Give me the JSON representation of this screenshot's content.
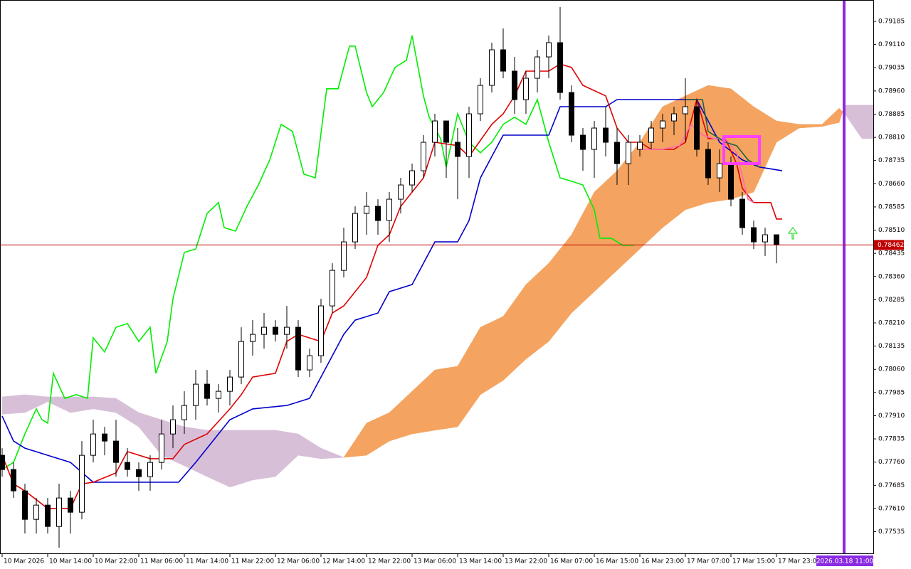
{
  "chart_data": {
    "type": "candlestick",
    "xlim": [
      -0.375,
      153
    ],
    "ylim": [
      0.77465,
      0.79254
    ],
    "xticks": [
      {
        "value": 0,
        "label": "10 Mar 2026"
      },
      {
        "value": 8,
        "label": "10 Mar 14:00"
      },
      {
        "value": 16,
        "label": "10 Mar 22:00"
      },
      {
        "value": 24,
        "label": "11 Mar 06:00"
      },
      {
        "value": 32,
        "label": "11 Mar 14:00"
      },
      {
        "value": 40,
        "label": "11 Mar 22:00"
      },
      {
        "value": 48,
        "label": "12 Mar 06:00"
      },
      {
        "value": 56,
        "label": "12 Mar 14:00"
      },
      {
        "value": 64,
        "label": "12 Mar 22:00"
      },
      {
        "value": 72,
        "label": "13 Mar 06:00"
      },
      {
        "value": 80,
        "label": "13 Mar 14:00"
      },
      {
        "value": 88,
        "label": "13 Mar 22:00"
      },
      {
        "value": 96,
        "label": "16 Mar 07:00"
      },
      {
        "value": 104,
        "label": "16 Mar 15:00"
      },
      {
        "value": 112,
        "label": "16 Mar 23:00"
      },
      {
        "value": 120,
        "label": "17 Mar 07:00"
      },
      {
        "value": 128,
        "label": "17 Mar 15:00"
      },
      {
        "value": 136,
        "label": "17 Mar 23:00"
      }
    ],
    "yticks": [
      0.79185,
      {
        "value": 0.7911,
        "label": "0.79110"
      },
      0.79035,
      {
        "value": 0.7896,
        "label": "0.78960"
      },
      0.78885,
      {
        "value": 0.7881,
        "label": "0.78810"
      },
      0.78735,
      {
        "value": 0.7866,
        "label": "0.78660"
      },
      0.78585,
      {
        "value": 0.7851,
        "label": "0.78510"
      },
      0.78435,
      {
        "value": 0.7836,
        "label": "0.78360"
      },
      0.78285,
      {
        "value": 0.7821,
        "label": "0.78210"
      },
      0.78135,
      {
        "value": 0.7806,
        "label": "0.78060"
      },
      0.77985,
      {
        "value": 0.7791,
        "label": "0.77910"
      },
      0.77835,
      {
        "value": 0.7776,
        "label": "0.77760"
      },
      0.77685,
      {
        "value": 0.7761,
        "label": "0.77610"
      },
      0.77535
    ],
    "bull_color": "#ffffff",
    "bear_color": "#000000",
    "x": [
      0,
      2,
      4,
      6,
      8,
      10,
      12,
      14,
      16,
      18,
      20,
      22,
      24,
      26,
      28,
      30,
      32,
      34,
      36,
      38,
      40,
      42,
      44,
      46,
      48,
      50,
      52,
      54,
      56,
      58,
      60,
      62,
      64,
      66,
      68,
      70,
      72,
      74,
      76,
      78,
      80,
      82,
      84,
      86,
      88,
      90,
      92,
      94,
      96,
      98,
      100,
      102,
      104,
      106,
      108,
      110,
      112,
      114,
      116,
      118,
      120,
      122,
      124,
      126,
      128,
      130,
      132,
      134,
      136
    ],
    "open": [
      0.77782,
      0.77736,
      0.77667,
      0.77575,
      0.77621,
      0.77552,
      0.77644,
      0.77598,
      0.77782,
      0.77851,
      0.77828,
      0.77759,
      0.77736,
      0.77713,
      0.77759,
      0.77851,
      0.77897,
      0.77943,
      0.78012,
      0.77966,
      0.77989,
      0.78035,
      0.7815,
      0.78173,
      0.78196,
      0.78173,
      0.78196,
      0.78058,
      0.78104,
      0.78265,
      0.7838,
      0.78472,
      0.78564,
      0.78587,
      0.78541,
      0.7861,
      0.78656,
      0.78702,
      0.78794,
      0.78863,
      0.78794,
      0.78748,
      0.78886,
      0.78978,
      0.79093,
      0.79024,
      0.78932,
      0.79001,
      0.7907,
      0.79116,
      0.78955,
      0.78817,
      0.78771,
      0.7884,
      0.78794,
      0.78725,
      0.78771,
      0.78794,
      0.7884,
      0.78863,
      0.78886,
      0.78909,
      0.78771,
      0.78679,
      0.78725,
      0.7861,
      0.78518,
      0.78472,
      0.78495
    ],
    "high": [
      0.77805,
      0.77759,
      0.7769,
      0.77644,
      0.77644,
      0.7769,
      0.77667,
      0.77828,
      0.77897,
      0.77874,
      0.77897,
      0.77805,
      0.77759,
      0.77782,
      0.77897,
      0.77943,
      0.77989,
      0.78058,
      0.78058,
      0.78012,
      0.78058,
      0.78196,
      0.78219,
      0.78242,
      0.78219,
      0.78265,
      0.78219,
      0.78127,
      0.78288,
      0.78403,
      0.78518,
      0.78587,
      0.78633,
      0.7861,
      0.78633,
      0.78679,
      0.78725,
      0.78817,
      0.78886,
      0.78863,
      0.7884,
      0.78909,
      0.79001,
      0.79116,
      0.79162,
      0.7907,
      0.79024,
      0.79093,
      0.79139,
      0.79231,
      0.78978,
      0.7884,
      0.78863,
      0.78909,
      0.7884,
      0.78817,
      0.78817,
      0.78863,
      0.78886,
      0.78909,
      0.79001,
      0.78932,
      0.78794,
      0.78771,
      0.78748,
      0.78633,
      0.78541,
      0.78518,
      0.78495
    ],
    "low": [
      0.77713,
      0.77644,
      0.77529,
      0.77529,
      0.77529,
      0.77483,
      0.77529,
      0.77575,
      0.77759,
      0.77782,
      0.77713,
      0.77713,
      0.77667,
      0.77667,
      0.77736,
      0.77805,
      0.77851,
      0.77897,
      0.77943,
      0.7792,
      0.77943,
      0.78012,
      0.78104,
      0.78127,
      0.7815,
      0.78127,
      0.78035,
      0.78035,
      0.78081,
      0.78242,
      0.78357,
      0.78449,
      0.78495,
      0.78495,
      0.78472,
      0.78564,
      0.78633,
      0.78679,
      0.78748,
      0.78679,
      0.7861,
      0.78679,
      0.78863,
      0.78955,
      0.79001,
      0.78886,
      0.78886,
      0.78955,
      0.79001,
      0.78932,
      0.78794,
      0.78702,
      0.78679,
      0.78748,
      0.78656,
      0.78656,
      0.78748,
      0.78771,
      0.78794,
      0.78817,
      0.78794,
      0.78748,
      0.78656,
      0.78633,
      0.78587,
      0.78495,
      0.78449,
      0.78426,
      0.78403
    ],
    "close": [
      0.77736,
      0.77667,
      0.77575,
      0.77621,
      0.77552,
      0.77644,
      0.77598,
      0.77782,
      0.77851,
      0.77828,
      0.77759,
      0.77736,
      0.77713,
      0.77759,
      0.77851,
      0.77897,
      0.77943,
      0.78012,
      0.77966,
      0.77989,
      0.78035,
      0.7815,
      0.78173,
      0.78196,
      0.78173,
      0.78196,
      0.78058,
      0.78104,
      0.78265,
      0.7838,
      0.78472,
      0.78564,
      0.78587,
      0.78541,
      0.7861,
      0.78656,
      0.78702,
      0.78794,
      0.78863,
      0.78794,
      0.78748,
      0.78886,
      0.78978,
      0.79093,
      0.79024,
      0.78932,
      0.79001,
      0.7907,
      0.79116,
      0.78955,
      0.78817,
      0.78771,
      0.7884,
      0.78794,
      0.78725,
      0.78794,
      0.78794,
      0.7884,
      0.78863,
      0.78886,
      0.78909,
      0.78771,
      0.78679,
      0.78725,
      0.7861,
      0.78518,
      0.78472,
      0.78495,
      0.78462
    ],
    "cloud": {
      "up_color": "#f4a460",
      "down_color": "#d8bfd8",
      "x": [
        0,
        4,
        8,
        12,
        16,
        20,
        24,
        28,
        32,
        36,
        40,
        44,
        48,
        52,
        56,
        60,
        64,
        68,
        72,
        76,
        80,
        84,
        88,
        92,
        96,
        100,
        104,
        108,
        112,
        116,
        120,
        124,
        128,
        132,
        136,
        140,
        144,
        147,
        148,
        151,
        153
      ],
      "span_a": [
        0.77915,
        0.7792,
        0.77955,
        0.7792,
        0.77932,
        0.7792,
        0.77874,
        0.77782,
        0.77748,
        0.77713,
        0.77679,
        0.77702,
        0.77713,
        0.77782,
        0.77771,
        0.77775,
        0.77886,
        0.7792,
        0.77989,
        0.78058,
        0.7807,
        0.78196,
        0.78231,
        0.78334,
        0.78403,
        0.78495,
        0.78633,
        0.78702,
        0.78794,
        0.78909,
        0.78944,
        0.78978,
        0.78967,
        0.78909,
        0.78863,
        0.78852,
        0.78852,
        0.78904,
        0.78886,
        0.78806,
        0.78806
      ],
      "span_b": [
        0.77971,
        0.77978,
        0.77971,
        0.77971,
        0.77971,
        0.77966,
        0.7792,
        0.77897,
        0.77874,
        0.77863,
        0.77863,
        0.77863,
        0.77863,
        0.77851,
        0.77805,
        0.77775,
        0.77782,
        0.77828,
        0.77851,
        0.77863,
        0.77874,
        0.77978,
        0.78024,
        0.78093,
        0.7815,
        0.78242,
        0.78311,
        0.7838,
        0.78449,
        0.78518,
        0.78576,
        0.78599,
        0.7861,
        0.78633,
        0.78794,
        0.7884,
        0.78845,
        0.78858,
        0.78914,
        0.78914,
        0.78914
      ]
    },
    "lines": [
      {
        "color": "#00ee00",
        "x": [
          0,
          2,
          4,
          6,
          7,
          8,
          9,
          11,
          13,
          15,
          16,
          18,
          20,
          22,
          24,
          26,
          27,
          29,
          30,
          32,
          34,
          36,
          38,
          39,
          41,
          43,
          45,
          47,
          49,
          51,
          53,
          55,
          57,
          59,
          61,
          62,
          64,
          65,
          67,
          69,
          71,
          72,
          74,
          75,
          77,
          78,
          80,
          82,
          84,
          86,
          88,
          90,
          92,
          94,
          96,
          98,
          100,
          102,
          104,
          105,
          107,
          109,
          111
        ],
        "values": [
          0.77736,
          0.77759,
          0.77851,
          0.77932,
          0.77897,
          0.77886,
          0.78047,
          0.77966,
          0.77978,
          0.77966,
          0.78162,
          0.78116,
          0.78196,
          0.78208,
          0.7815,
          0.78196,
          0.78047,
          0.7815,
          0.78288,
          0.78438,
          0.78449,
          0.78564,
          0.78599,
          0.78518,
          0.78507,
          0.78587,
          0.78656,
          0.78737,
          0.78852,
          0.78829,
          0.78691,
          0.78679,
          0.78967,
          0.78967,
          0.79105,
          0.79105,
          0.78955,
          0.78909,
          0.78955,
          0.79036,
          0.79059,
          0.79139,
          0.78944,
          0.78875,
          0.78806,
          0.78714,
          0.78886,
          0.78794,
          0.7876,
          0.78794,
          0.78852,
          0.78875,
          0.78852,
          0.78932,
          0.78794,
          0.78679,
          0.78668,
          0.78656,
          0.78576,
          0.78484,
          0.78484,
          0.78461,
          0.78461
        ]
      },
      {
        "color": "#0000cc",
        "x": [
          0,
          2,
          4,
          8,
          12,
          16,
          24,
          31,
          34,
          36,
          38,
          40,
          44,
          50,
          54,
          56,
          60,
          62,
          66,
          68,
          72,
          74,
          76,
          80,
          82,
          84,
          86,
          88,
          96,
          98,
          106,
          108,
          122,
          126,
          130,
          133,
          137
        ],
        "values": [
          0.77909,
          0.77828,
          0.77805,
          0.77782,
          0.77759,
          0.77695,
          0.77695,
          0.77695,
          0.77759,
          0.77805,
          0.77851,
          0.77897,
          0.77932,
          0.77943,
          0.77966,
          0.78035,
          0.78173,
          0.78219,
          0.78242,
          0.78311,
          0.78334,
          0.78403,
          0.78472,
          0.78472,
          0.78541,
          0.78679,
          0.78748,
          0.78817,
          0.78817,
          0.78909,
          0.78909,
          0.78932,
          0.78932,
          0.78794,
          0.78737,
          0.78714,
          0.78702
        ]
      },
      {
        "color": "#dd0000",
        "x": [
          0,
          2,
          4,
          8,
          12,
          14,
          16,
          20,
          22,
          26,
          30,
          32,
          36,
          40,
          42,
          44,
          48,
          50,
          52,
          56,
          58,
          60,
          64,
          66,
          68,
          70,
          72,
          74,
          76,
          80,
          82,
          86,
          88,
          90,
          92,
          96,
          98,
          100,
          102,
          106,
          108,
          110,
          112,
          114,
          118,
          120,
          122,
          124,
          127,
          129,
          130,
          132,
          135,
          136,
          137
        ],
        "values": [
          0.77782,
          0.7769,
          0.77667,
          0.7761,
          0.7761,
          0.7769,
          0.77695,
          0.77725,
          0.77794,
          0.77771,
          0.77771,
          0.77817,
          0.77851,
          0.77932,
          0.77978,
          0.78035,
          0.78047,
          0.7815,
          0.78173,
          0.7815,
          0.78242,
          0.78265,
          0.78357,
          0.78461,
          0.78495,
          0.78587,
          0.78633,
          0.78679,
          0.78794,
          0.78783,
          0.78748,
          0.78852,
          0.78886,
          0.78944,
          0.79024,
          0.79024,
          0.79047,
          0.79036,
          0.78978,
          0.78944,
          0.7884,
          0.78794,
          0.78794,
          0.78771,
          0.78771,
          0.78794,
          0.78932,
          0.78806,
          0.78806,
          0.78725,
          0.78645,
          0.78599,
          0.78599,
          0.78546,
          0.78546
        ]
      },
      {
        "color": "#ff69b4",
        "x": [
          112,
          116,
          119,
          121,
          123,
          125,
          127,
          129,
          131,
          132
        ],
        "values": [
          0.78771,
          0.78771,
          0.78783,
          0.78852,
          0.78817,
          0.78806,
          0.78806,
          0.7876,
          0.7861,
          0.78599
        ]
      },
      {
        "color": "#206040",
        "x": [
          120,
          123,
          124,
          127,
          129,
          131,
          133
        ],
        "values": [
          0.78932,
          0.78932,
          0.78829,
          0.78794,
          0.78783,
          0.78737,
          0.78714
        ]
      }
    ],
    "current_price": 0.78462,
    "current_price_color": "#c00000",
    "cursor_time": "2026.03.18 11:00"
  }
}
